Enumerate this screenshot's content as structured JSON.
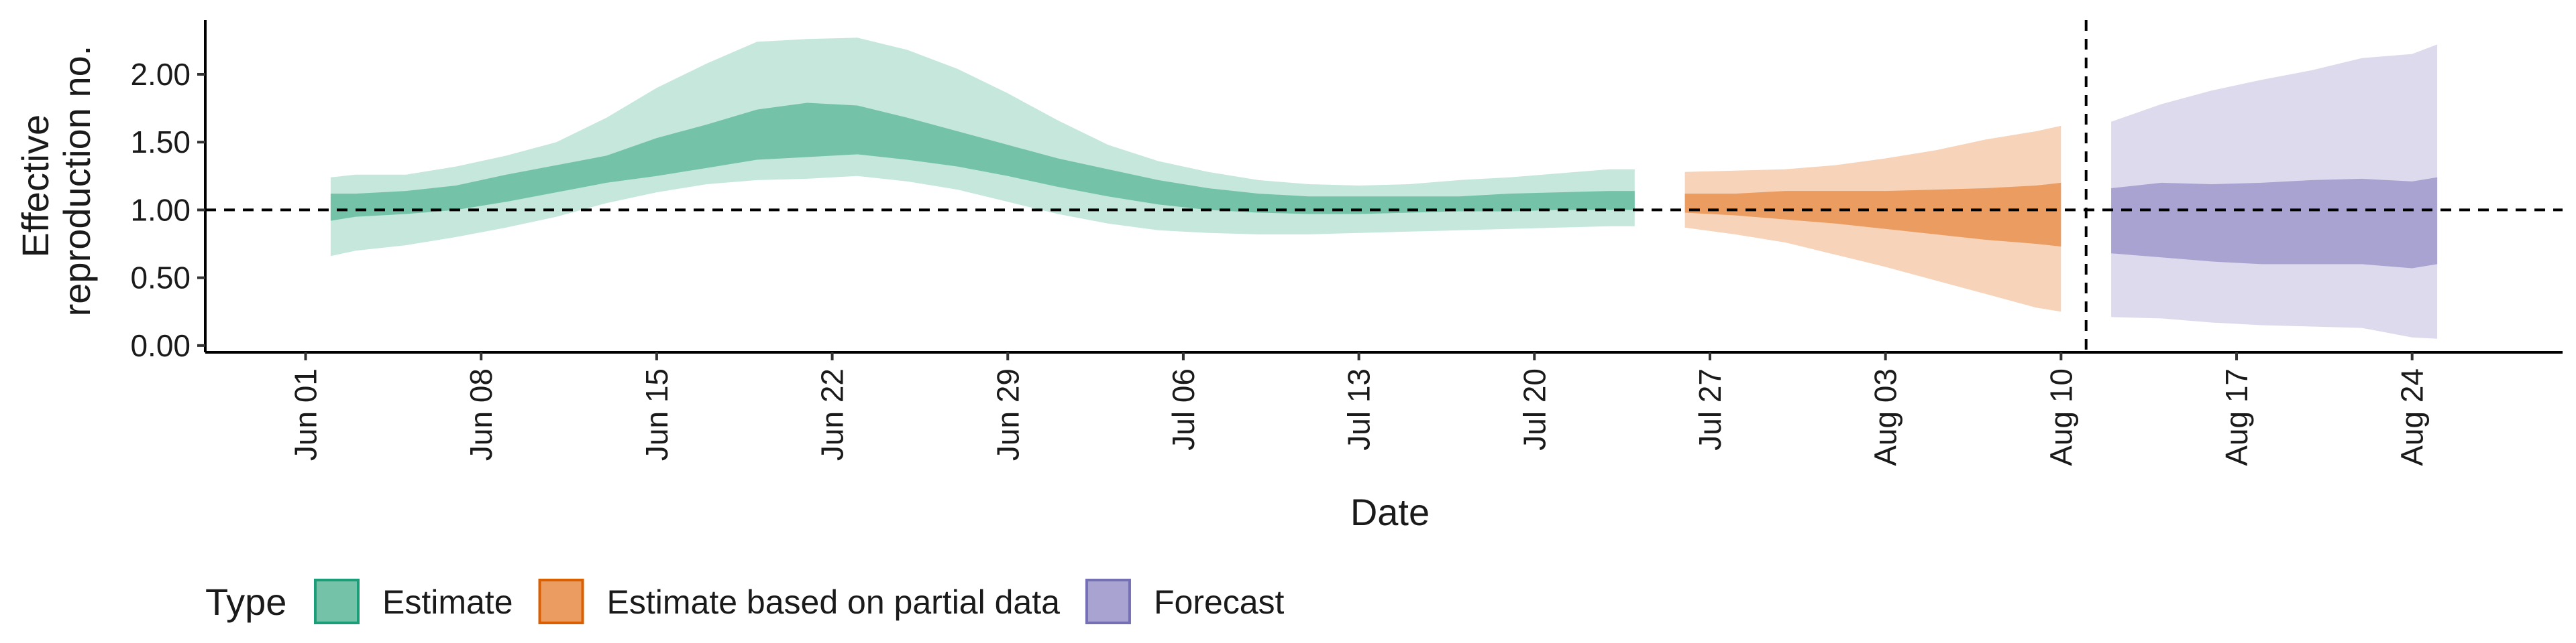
{
  "chart_data": {
    "type": "area",
    "xlabel": "Date",
    "ylabel_lines": [
      "Effective",
      "reproduction no."
    ],
    "y_ticks": [
      "0.00",
      "0.50",
      "1.00",
      "1.50",
      "2.00"
    ],
    "y_tick_values": [
      0,
      0.5,
      1,
      1.5,
      2
    ],
    "ylim": [
      -0.05,
      2.4
    ],
    "x_ticks": [
      {
        "date": "2020-06-01",
        "label": "Jun 01"
      },
      {
        "date": "2020-06-08",
        "label": "Jun 08"
      },
      {
        "date": "2020-06-15",
        "label": "Jun 15"
      },
      {
        "date": "2020-06-22",
        "label": "Jun 22"
      },
      {
        "date": "2020-06-29",
        "label": "Jun 29"
      },
      {
        "date": "2020-07-06",
        "label": "Jul 06"
      },
      {
        "date": "2020-07-13",
        "label": "Jul 13"
      },
      {
        "date": "2020-07-20",
        "label": "Jul 20"
      },
      {
        "date": "2020-07-27",
        "label": "Jul 27"
      },
      {
        "date": "2020-08-03",
        "label": "Aug 03"
      },
      {
        "date": "2020-08-10",
        "label": "Aug 10"
      },
      {
        "date": "2020-08-17",
        "label": "Aug 17"
      },
      {
        "date": "2020-08-24",
        "label": "Aug 24"
      }
    ],
    "xlim": [
      "2020-05-28",
      "2020-08-30"
    ],
    "reference_line_y": 1.0,
    "vline_date": "2020-08-11",
    "legend": {
      "title": "Type",
      "placement": "bottom-left",
      "items": [
        {
          "label": "Estimate",
          "fill": "#74c3a8",
          "border": "#1b9e77"
        },
        {
          "label": "Estimate based on partial data",
          "fill": "#eb9c61",
          "border": "#d95f02"
        },
        {
          "label": "Forecast",
          "fill": "#a8a3d1",
          "border": "#7570b3"
        }
      ]
    },
    "series": [
      {
        "name": "Estimate",
        "inner_color": "#74c3a8",
        "outer_color": "#c5e7dc",
        "dates": [
          "2020-06-02",
          "2020-06-03",
          "2020-06-05",
          "2020-06-07",
          "2020-06-09",
          "2020-06-11",
          "2020-06-13",
          "2020-06-15",
          "2020-06-17",
          "2020-06-19",
          "2020-06-21",
          "2020-06-23",
          "2020-06-25",
          "2020-06-27",
          "2020-06-29",
          "2020-07-01",
          "2020-07-03",
          "2020-07-05",
          "2020-07-07",
          "2020-07-09",
          "2020-07-11",
          "2020-07-13",
          "2020-07-15",
          "2020-07-17",
          "2020-07-19",
          "2020-07-21",
          "2020-07-23",
          "2020-07-24"
        ],
        "upper90": [
          1.24,
          1.26,
          1.26,
          1.32,
          1.4,
          1.5,
          1.68,
          1.9,
          2.08,
          2.24,
          2.26,
          2.27,
          2.18,
          2.04,
          1.86,
          1.66,
          1.48,
          1.36,
          1.28,
          1.22,
          1.19,
          1.18,
          1.19,
          1.22,
          1.24,
          1.27,
          1.3,
          1.3
        ],
        "upper50": [
          1.12,
          1.12,
          1.14,
          1.18,
          1.26,
          1.33,
          1.4,
          1.53,
          1.63,
          1.74,
          1.79,
          1.77,
          1.68,
          1.58,
          1.48,
          1.38,
          1.3,
          1.22,
          1.16,
          1.12,
          1.1,
          1.1,
          1.1,
          1.1,
          1.12,
          1.13,
          1.14,
          1.14
        ],
        "lower50": [
          0.92,
          0.95,
          0.97,
          1.0,
          1.06,
          1.13,
          1.2,
          1.25,
          1.31,
          1.37,
          1.39,
          1.41,
          1.37,
          1.32,
          1.25,
          1.17,
          1.1,
          1.04,
          1.0,
          0.98,
          0.97,
          0.97,
          0.98,
          0.99,
          0.99,
          1.0,
          1.0,
          1.0
        ],
        "lower90": [
          0.66,
          0.7,
          0.74,
          0.8,
          0.87,
          0.95,
          1.05,
          1.13,
          1.19,
          1.22,
          1.23,
          1.25,
          1.21,
          1.15,
          1.06,
          0.97,
          0.9,
          0.85,
          0.83,
          0.82,
          0.82,
          0.83,
          0.84,
          0.85,
          0.86,
          0.87,
          0.88,
          0.88
        ]
      },
      {
        "name": "Estimate based on partial data",
        "inner_color": "#eb9c61",
        "outer_color": "#f6d3b9",
        "dates": [
          "2020-07-26",
          "2020-07-28",
          "2020-07-30",
          "2020-08-01",
          "2020-08-03",
          "2020-08-05",
          "2020-08-07",
          "2020-08-09",
          "2020-08-10"
        ],
        "upper90": [
          1.28,
          1.29,
          1.3,
          1.33,
          1.38,
          1.44,
          1.52,
          1.58,
          1.62
        ],
        "upper50": [
          1.12,
          1.12,
          1.14,
          1.14,
          1.14,
          1.15,
          1.16,
          1.18,
          1.2
        ],
        "lower50": [
          0.98,
          0.96,
          0.93,
          0.9,
          0.86,
          0.82,
          0.78,
          0.75,
          0.73
        ],
        "lower90": [
          0.87,
          0.82,
          0.76,
          0.67,
          0.58,
          0.48,
          0.38,
          0.28,
          0.25
        ]
      },
      {
        "name": "Forecast",
        "inner_color": "#a8a3d1",
        "outer_color": "#dcdaec",
        "dates": [
          "2020-08-12",
          "2020-08-14",
          "2020-08-16",
          "2020-08-18",
          "2020-08-20",
          "2020-08-22",
          "2020-08-24",
          "2020-08-25"
        ],
        "upper90": [
          1.65,
          1.78,
          1.88,
          1.96,
          2.03,
          2.12,
          2.15,
          2.22
        ],
        "upper50": [
          1.16,
          1.2,
          1.19,
          1.2,
          1.22,
          1.23,
          1.21,
          1.24
        ],
        "lower50": [
          0.68,
          0.65,
          0.62,
          0.6,
          0.6,
          0.6,
          0.57,
          0.6
        ],
        "lower90": [
          0.21,
          0.2,
          0.17,
          0.15,
          0.14,
          0.13,
          0.06,
          0.05
        ]
      }
    ]
  }
}
